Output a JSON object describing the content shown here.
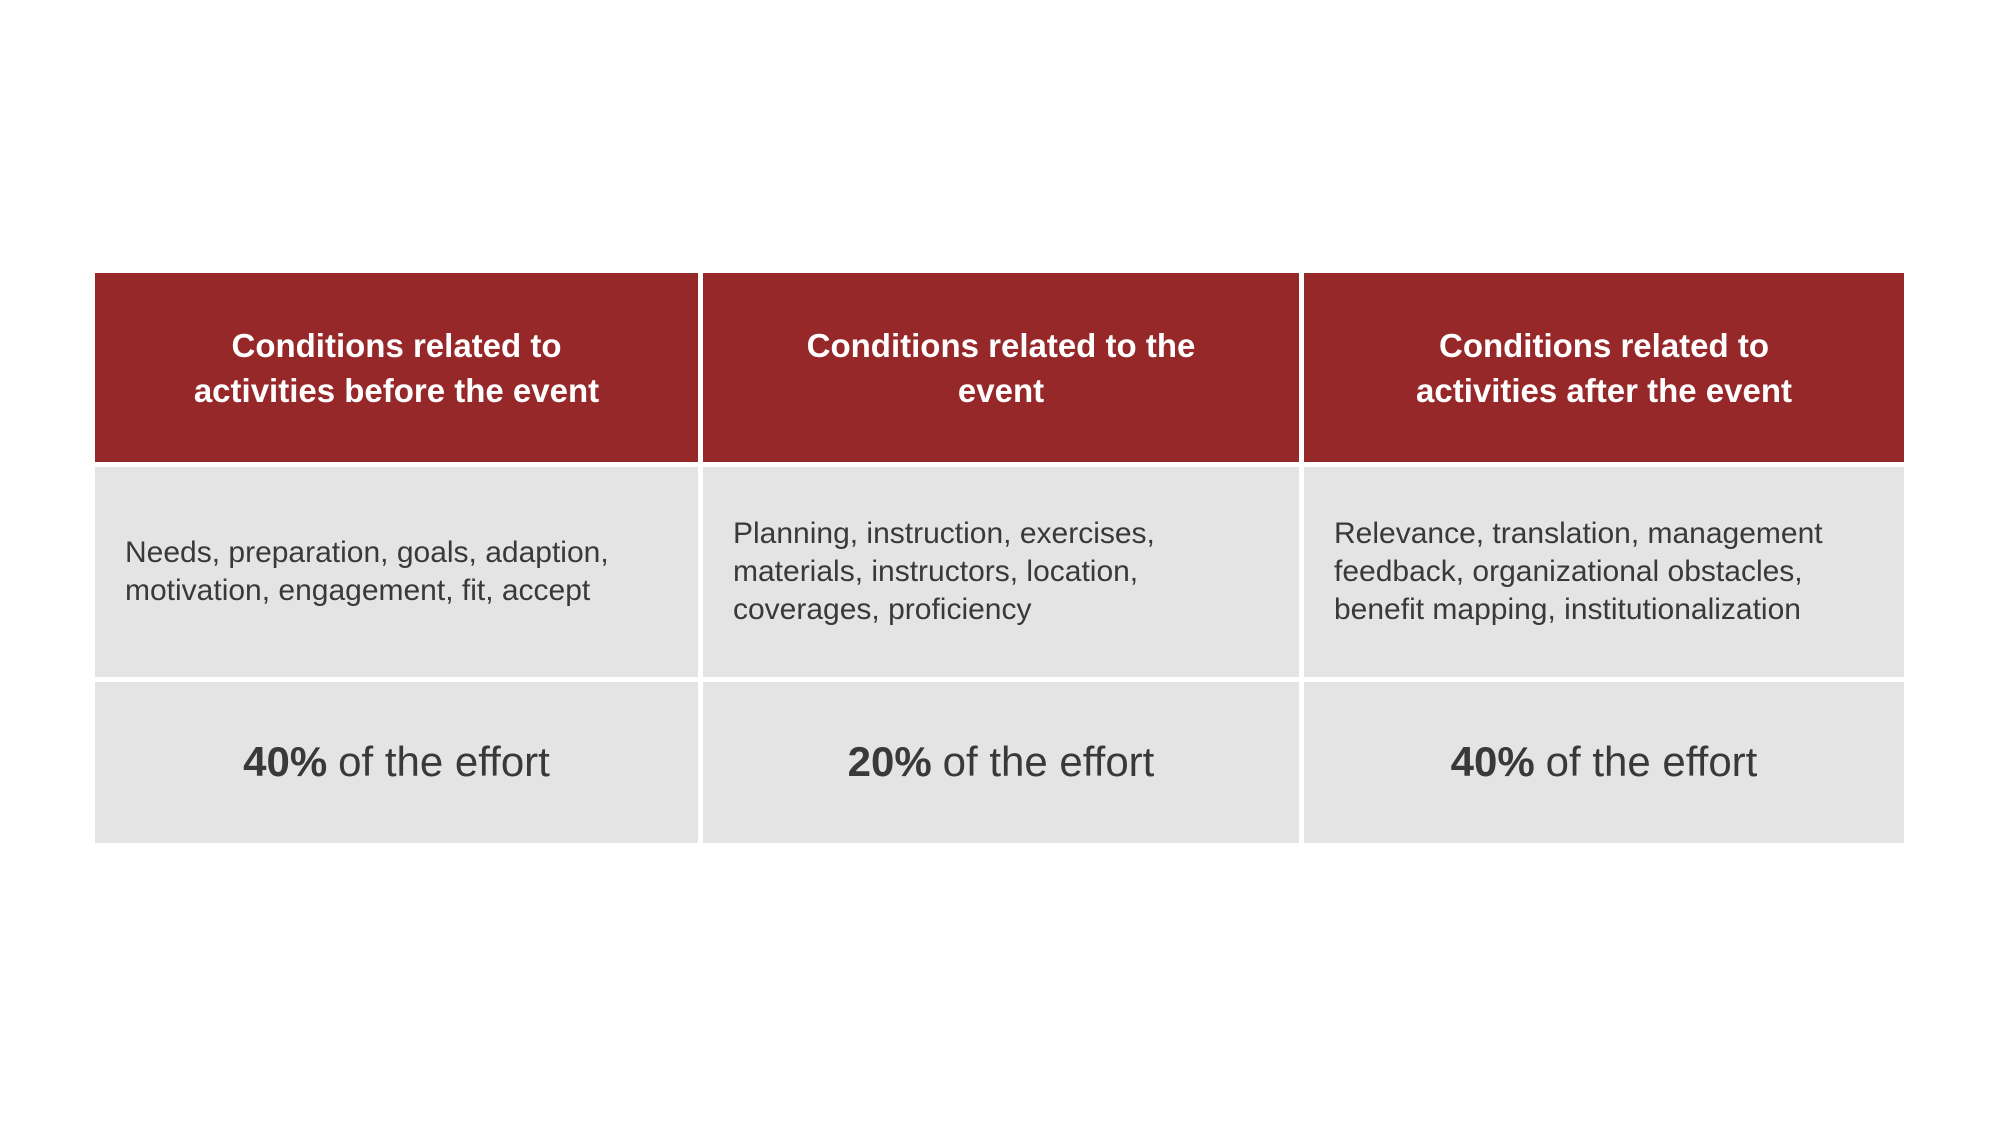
{
  "slide": {
    "background_color": "#ffffff"
  },
  "table": {
    "header_bg": "#97282a",
    "header_text_color": "#ffffff",
    "body_bg": "#e4e4e4",
    "body_text_color": "#3b3838",
    "columns": [
      {
        "header": "Conditions related to activities before the event",
        "conditions": "Needs, preparation, goals, adaption, motivation, engagement, fit, accept",
        "effort_pct": "40%",
        "effort_rest": "of the effort"
      },
      {
        "header": "Conditions related to the event",
        "conditions": "Planning, instruction, exercises, materials, instructors, location, coverages, proficiency",
        "effort_pct": "20%",
        "effort_rest": "of the effort"
      },
      {
        "header": "Conditions related to activities after the event",
        "conditions": "Relevance, translation, management feedback, organizational obstacles, benefit mapping, institutionalization",
        "effort_pct": "40%",
        "effort_rest": "of the effort"
      }
    ]
  }
}
